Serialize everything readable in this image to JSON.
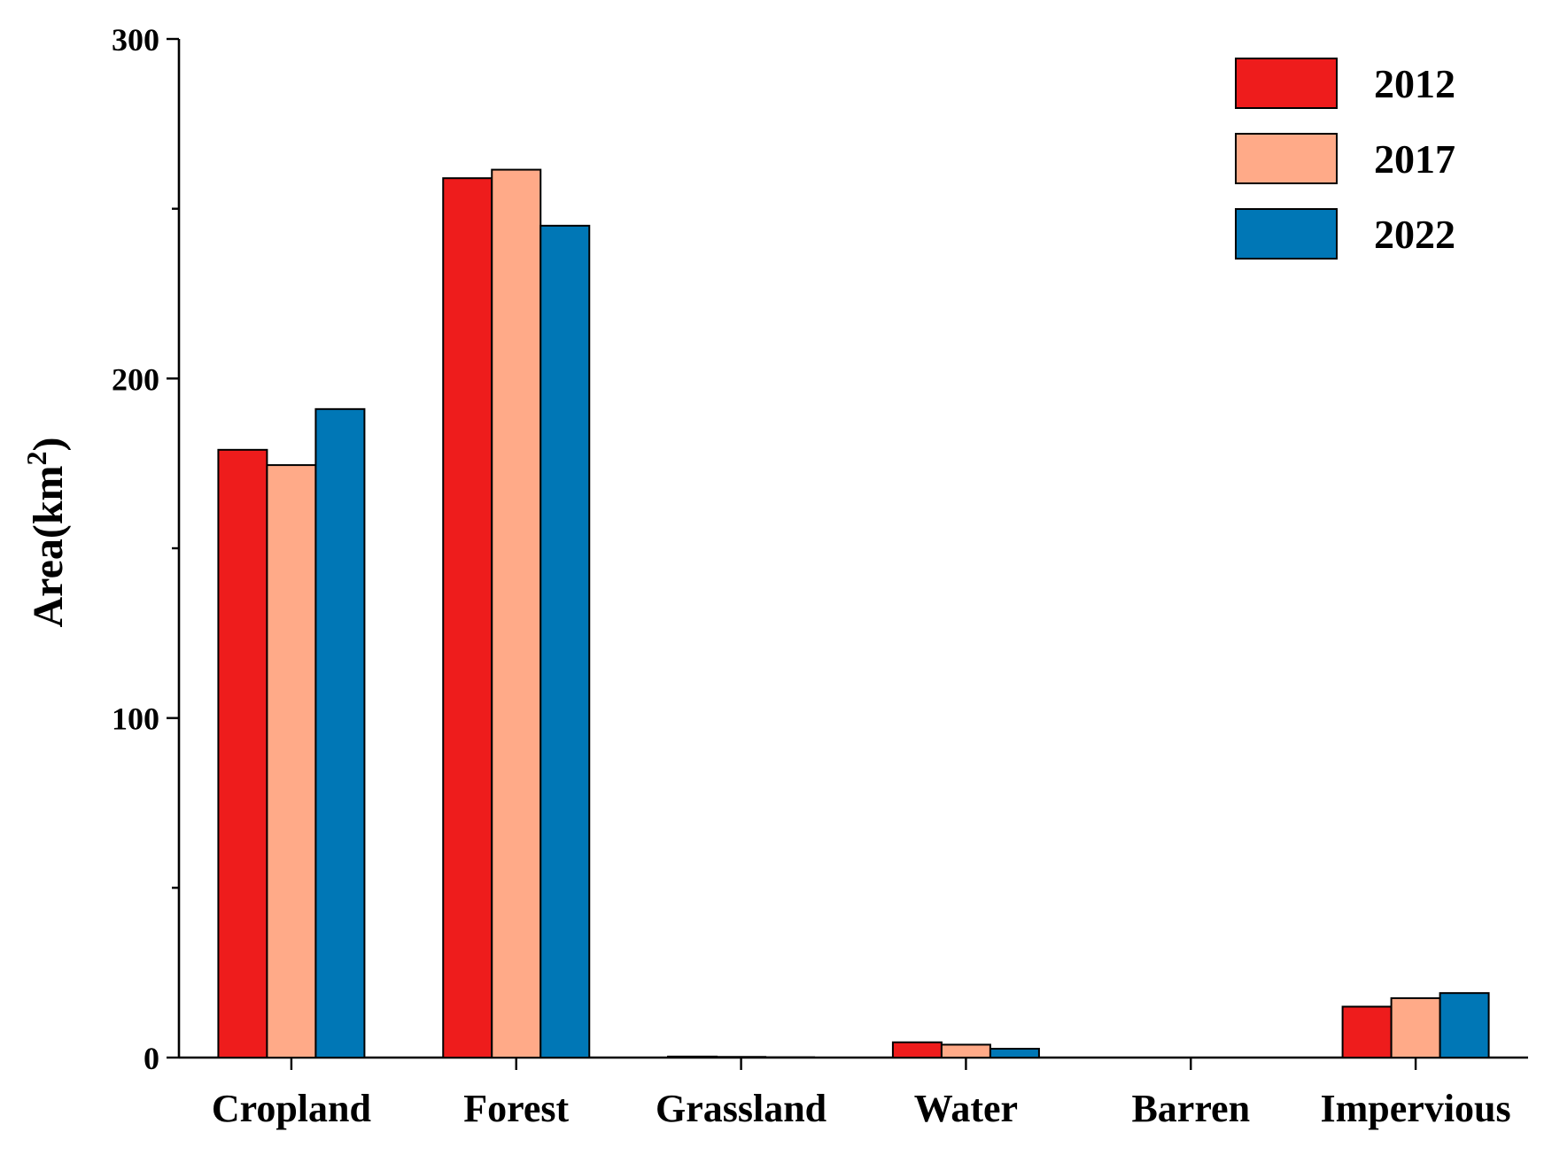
{
  "chart_data": {
    "type": "bar",
    "title": "",
    "xlabel": "",
    "ylabel": "Area(km",
    "ylabel_superscript": "2",
    "ylabel_close": ")",
    "ylim": [
      0,
      300
    ],
    "major_ticks": [
      0,
      100,
      200,
      300
    ],
    "minor_ticks": [
      50,
      150,
      250
    ],
    "categories": [
      "Cropland",
      "Forest",
      "Grassland",
      "Water",
      "Barren",
      "Impervious"
    ],
    "series": [
      {
        "name": "2012",
        "color": "#ee1c1c",
        "values": [
          179,
          259,
          0.3,
          4.5,
          0,
          15
        ]
      },
      {
        "name": "2017",
        "color": "#ffaa88",
        "values": [
          174.5,
          261.5,
          0.2,
          3.8,
          0,
          17.5
        ]
      },
      {
        "name": "2022",
        "color": "#0077b6",
        "values": [
          191,
          245,
          0.1,
          2.6,
          0,
          19
        ]
      }
    ],
    "legend": {
      "position": "top-right",
      "entries": [
        "2012",
        "2017",
        "2022"
      ]
    }
  }
}
